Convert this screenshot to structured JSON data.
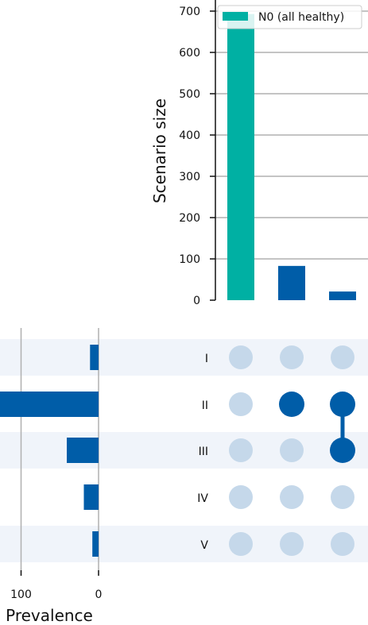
{
  "chart_data": [
    {
      "type": "bar",
      "ylabel": "Scenario size",
      "ylim": [
        0,
        720
      ],
      "yticks": [
        0,
        100,
        200,
        300,
        400,
        500,
        600,
        700
      ],
      "grid": true,
      "categories": [
        "N0",
        "II",
        "II-III"
      ],
      "values": [
        693,
        83,
        21
      ],
      "colors": [
        "#00b0a3",
        "#005da8",
        "#005da8"
      ],
      "legend": {
        "label": "N0 (all healthy)",
        "color": "#00b0a3",
        "position": "top-right"
      }
    },
    {
      "type": "bar",
      "orientation": "horizontal",
      "direction": "reversed",
      "xlabel": "Prevalence",
      "xticks": [
        100,
        0
      ],
      "xlim": [
        0,
        126
      ],
      "categories": [
        "I",
        "II",
        "III",
        "IV",
        "V"
      ],
      "values": [
        11,
        130,
        41,
        19,
        8
      ],
      "color": "#005da8"
    }
  ],
  "matrix": {
    "rows": [
      "I",
      "II",
      "III",
      "IV",
      "V"
    ],
    "active_color": "#005da8",
    "inactive_color": "#c5d8ea",
    "columns": [
      [],
      [
        1
      ],
      [
        1,
        2
      ]
    ]
  }
}
